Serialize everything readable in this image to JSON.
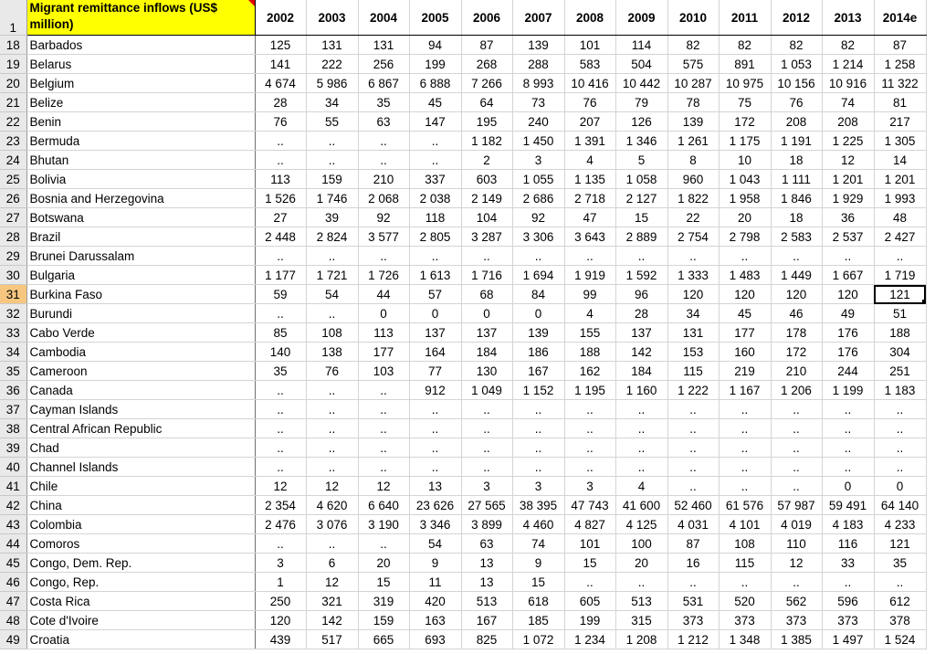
{
  "sheet": {
    "title_cell": "Migrant remittance inflows (US$ million)",
    "header_row_number": "1",
    "years": [
      "2002",
      "2003",
      "2004",
      "2005",
      "2006",
      "2007",
      "2008",
      "2009",
      "2010",
      "2011",
      "2012",
      "2013",
      "2014e"
    ],
    "selected_row_number": "31",
    "active_cell": {
      "row_number": "31",
      "column": "2014e",
      "value": "121"
    },
    "rows": [
      {
        "n": "18",
        "country": "Barbados",
        "v": [
          "125",
          "131",
          "131",
          "94",
          "87",
          "139",
          "101",
          "114",
          "82",
          "82",
          "82",
          "82",
          "87"
        ]
      },
      {
        "n": "19",
        "country": "Belarus",
        "v": [
          "141",
          "222",
          "256",
          "199",
          "268",
          "288",
          "583",
          "504",
          "575",
          "891",
          "1 053",
          "1 214",
          "1 258"
        ]
      },
      {
        "n": "20",
        "country": "Belgium",
        "v": [
          "4 674",
          "5 986",
          "6 867",
          "6 888",
          "7 266",
          "8 993",
          "10 416",
          "10 442",
          "10 287",
          "10 975",
          "10 156",
          "10 916",
          "11 322"
        ]
      },
      {
        "n": "21",
        "country": "Belize",
        "v": [
          "28",
          "34",
          "35",
          "45",
          "64",
          "73",
          "76",
          "79",
          "78",
          "75",
          "76",
          "74",
          "81"
        ]
      },
      {
        "n": "22",
        "country": "Benin",
        "v": [
          "76",
          "55",
          "63",
          "147",
          "195",
          "240",
          "207",
          "126",
          "139",
          "172",
          "208",
          "208",
          "217"
        ]
      },
      {
        "n": "23",
        "country": "Bermuda",
        "v": [
          "..",
          "..",
          "..",
          "..",
          "1 182",
          "1 450",
          "1 391",
          "1 346",
          "1 261",
          "1 175",
          "1 191",
          "1 225",
          "1 305"
        ]
      },
      {
        "n": "24",
        "country": "Bhutan",
        "v": [
          "..",
          "..",
          "..",
          "..",
          "2",
          "3",
          "4",
          "5",
          "8",
          "10",
          "18",
          "12",
          "14"
        ]
      },
      {
        "n": "25",
        "country": "Bolivia",
        "v": [
          "113",
          "159",
          "210",
          "337",
          "603",
          "1 055",
          "1 135",
          "1 058",
          "960",
          "1 043",
          "1 111",
          "1 201",
          "1 201"
        ]
      },
      {
        "n": "26",
        "country": "Bosnia and Herzegovina",
        "v": [
          "1 526",
          "1 746",
          "2 068",
          "2 038",
          "2 149",
          "2 686",
          "2 718",
          "2 127",
          "1 822",
          "1 958",
          "1 846",
          "1 929",
          "1 993"
        ]
      },
      {
        "n": "27",
        "country": "Botswana",
        "v": [
          "27",
          "39",
          "92",
          "118",
          "104",
          "92",
          "47",
          "15",
          "22",
          "20",
          "18",
          "36",
          "48"
        ]
      },
      {
        "n": "28",
        "country": "Brazil",
        "v": [
          "2 448",
          "2 824",
          "3 577",
          "2 805",
          "3 287",
          "3 306",
          "3 643",
          "2 889",
          "2 754",
          "2 798",
          "2 583",
          "2 537",
          "2 427"
        ]
      },
      {
        "n": "29",
        "country": "Brunei Darussalam",
        "v": [
          "..",
          "..",
          "..",
          "..",
          "..",
          "..",
          "..",
          "..",
          "..",
          "..",
          "..",
          "..",
          ".."
        ]
      },
      {
        "n": "30",
        "country": "Bulgaria",
        "v": [
          "1 177",
          "1 721",
          "1 726",
          "1 613",
          "1 716",
          "1 694",
          "1 919",
          "1 592",
          "1 333",
          "1 483",
          "1 449",
          "1 667",
          "1 719"
        ]
      },
      {
        "n": "31",
        "country": "Burkina Faso",
        "v": [
          "59",
          "54",
          "44",
          "57",
          "68",
          "84",
          "99",
          "96",
          "120",
          "120",
          "120",
          "120",
          "121"
        ]
      },
      {
        "n": "32",
        "country": "Burundi",
        "v": [
          "..",
          "..",
          "0",
          "0",
          "0",
          "0",
          "4",
          "28",
          "34",
          "45",
          "46",
          "49",
          "51"
        ]
      },
      {
        "n": "33",
        "country": "Cabo Verde",
        "v": [
          "85",
          "108",
          "113",
          "137",
          "137",
          "139",
          "155",
          "137",
          "131",
          "177",
          "178",
          "176",
          "188"
        ]
      },
      {
        "n": "34",
        "country": "Cambodia",
        "v": [
          "140",
          "138",
          "177",
          "164",
          "184",
          "186",
          "188",
          "142",
          "153",
          "160",
          "172",
          "176",
          "304"
        ]
      },
      {
        "n": "35",
        "country": "Cameroon",
        "v": [
          "35",
          "76",
          "103",
          "77",
          "130",
          "167",
          "162",
          "184",
          "115",
          "219",
          "210",
          "244",
          "251"
        ]
      },
      {
        "n": "36",
        "country": "Canada",
        "v": [
          "..",
          "..",
          "..",
          "912",
          "1 049",
          "1 152",
          "1 195",
          "1 160",
          "1 222",
          "1 167",
          "1 206",
          "1 199",
          "1 183"
        ]
      },
      {
        "n": "37",
        "country": "Cayman Islands",
        "v": [
          "..",
          "..",
          "..",
          "..",
          "..",
          "..",
          "..",
          "..",
          "..",
          "..",
          "..",
          "..",
          ".."
        ]
      },
      {
        "n": "38",
        "country": "Central African Republic",
        "v": [
          "..",
          "..",
          "..",
          "..",
          "..",
          "..",
          "..",
          "..",
          "..",
          "..",
          "..",
          "..",
          ".."
        ]
      },
      {
        "n": "39",
        "country": "Chad",
        "v": [
          "..",
          "..",
          "..",
          "..",
          "..",
          "..",
          "..",
          "..",
          "..",
          "..",
          "..",
          "..",
          ".."
        ]
      },
      {
        "n": "40",
        "country": "Channel Islands",
        "v": [
          "..",
          "..",
          "..",
          "..",
          "..",
          "..",
          "..",
          "..",
          "..",
          "..",
          "..",
          "..",
          ".."
        ]
      },
      {
        "n": "41",
        "country": "Chile",
        "v": [
          "12",
          "12",
          "12",
          "13",
          "3",
          "3",
          "3",
          "4",
          "..",
          "..",
          "..",
          "0",
          "0"
        ]
      },
      {
        "n": "42",
        "country": "China",
        "v": [
          "2 354",
          "4 620",
          "6 640",
          "23 626",
          "27 565",
          "38 395",
          "47 743",
          "41 600",
          "52 460",
          "61 576",
          "57 987",
          "59 491",
          "64 140"
        ]
      },
      {
        "n": "43",
        "country": "Colombia",
        "v": [
          "2 476",
          "3 076",
          "3 190",
          "3 346",
          "3 899",
          "4 460",
          "4 827",
          "4 125",
          "4 031",
          "4 101",
          "4 019",
          "4 183",
          "4 233"
        ]
      },
      {
        "n": "44",
        "country": "Comoros",
        "v": [
          "..",
          "..",
          "..",
          "54",
          "63",
          "74",
          "101",
          "100",
          "87",
          "108",
          "110",
          "116",
          "121"
        ]
      },
      {
        "n": "45",
        "country": "Congo, Dem. Rep.",
        "v": [
          "3",
          "6",
          "20",
          "9",
          "13",
          "9",
          "15",
          "20",
          "16",
          "115",
          "12",
          "33",
          "35"
        ]
      },
      {
        "n": "46",
        "country": "Congo, Rep.",
        "v": [
          "1",
          "12",
          "15",
          "11",
          "13",
          "15",
          "..",
          "..",
          "..",
          "..",
          "..",
          "..",
          ".."
        ]
      },
      {
        "n": "47",
        "country": "Costa Rica",
        "v": [
          "250",
          "321",
          "319",
          "420",
          "513",
          "618",
          "605",
          "513",
          "531",
          "520",
          "562",
          "596",
          "612"
        ]
      },
      {
        "n": "48",
        "country": "Cote d'Ivoire",
        "v": [
          "120",
          "142",
          "159",
          "163",
          "167",
          "185",
          "199",
          "315",
          "373",
          "373",
          "373",
          "373",
          "378"
        ]
      },
      {
        "n": "49",
        "country": "Croatia",
        "v": [
          "439",
          "517",
          "665",
          "693",
          "825",
          "1 072",
          "1 234",
          "1 208",
          "1 212",
          "1 348",
          "1 385",
          "1 497",
          "1 524"
        ]
      }
    ]
  }
}
